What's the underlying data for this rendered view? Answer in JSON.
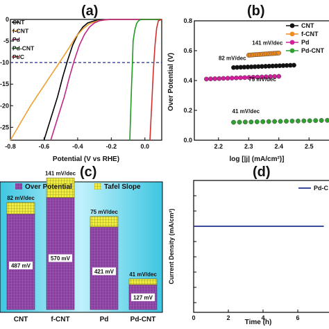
{
  "chart_data": [
    {
      "panel": "(a)",
      "type": "line",
      "xlabel": "Potential (V vs RHE)",
      "ylabel": "",
      "xlim": [
        -0.8,
        0.1
      ],
      "ylim": [
        -28,
        0
      ],
      "x_ticks": [
        "-0.8",
        "-0.6",
        "-0.4",
        "-0.2",
        "0.0"
      ],
      "y_ticks": [
        "0",
        "-5",
        "-10",
        "-15",
        "-20",
        "-25"
      ],
      "reference_line": {
        "y": -10,
        "style": "dashed",
        "color": "#1f2f8a"
      },
      "legend": [
        "CNT",
        "f-CNT",
        "Pd",
        "Pd-CNT",
        "Pt/C"
      ],
      "series": [
        {
          "name": "CNT",
          "color": "#000000",
          "x": [
            -0.6,
            -0.56,
            -0.52,
            -0.49,
            -0.46,
            -0.43,
            -0.4,
            -0.37,
            -0.34,
            -0.3,
            -0.25,
            -0.2,
            0.0,
            0.1
          ],
          "y": [
            -28,
            -23,
            -18,
            -13.5,
            -9.5,
            -6,
            -3.5,
            -1.8,
            -0.8,
            -0.3,
            -0.1,
            0,
            0,
            0
          ]
        },
        {
          "name": "f-CNT",
          "color": "#f0a030",
          "x": [
            -0.8,
            -0.74,
            -0.68,
            -0.62,
            -0.56,
            -0.5,
            -0.45,
            -0.41,
            -0.37,
            -0.33,
            -0.28,
            -0.2,
            0.0,
            0.1
          ],
          "y": [
            -28,
            -24,
            -20,
            -16.5,
            -13,
            -9.5,
            -6.5,
            -4,
            -2.2,
            -1,
            -0.3,
            0,
            0,
            0
          ]
        },
        {
          "name": "Pd",
          "color": "#c2248a",
          "x": [
            -0.56,
            -0.52,
            -0.48,
            -0.45,
            -0.42,
            -0.39,
            -0.36,
            -0.33,
            -0.3,
            -0.27,
            -0.24,
            -0.2,
            0.0,
            0.1
          ],
          "y": [
            -28,
            -23,
            -18,
            -13.5,
            -9.5,
            -6,
            -3.5,
            -1.8,
            -0.8,
            -0.3,
            -0.1,
            0,
            0,
            0
          ]
        },
        {
          "name": "Pd-CNT",
          "color": "#1e9a1e",
          "x": [
            -0.09,
            -0.085,
            -0.08,
            -0.075,
            -0.07,
            -0.06,
            -0.05,
            -0.04,
            -0.03,
            -0.02,
            -0.01,
            0.0,
            0.1
          ],
          "y": [
            -28,
            -22,
            -16,
            -11,
            -5,
            -2.5,
            -1,
            -0.4,
            -0.1,
            0,
            0,
            0,
            0
          ]
        },
        {
          "name": "Pt/C",
          "color": "#d03030",
          "x": [
            0.03,
            0.04,
            0.05,
            0.06,
            0.07,
            0.08,
            0.1
          ],
          "y": [
            -28,
            -20,
            -12,
            -6,
            -2,
            -0.3,
            0
          ]
        }
      ]
    },
    {
      "panel": "(b)",
      "type": "scatter",
      "xlabel": "log [|j| (mA/cm²)]",
      "ylabel": "Over Potential (V)",
      "xlim": [
        2.12,
        2.58
      ],
      "ylim": [
        0.0,
        0.8
      ],
      "x_ticks": [
        "2.2",
        "2.3",
        "2.4",
        "2.5"
      ],
      "y_ticks": [
        "0.0",
        "0.2",
        "0.4",
        "0.6",
        "0.8"
      ],
      "legend": [
        "CNT",
        "f-CNT",
        "Pd",
        "Pd-CNT"
      ],
      "series": [
        {
          "name": "CNT",
          "color": "#111111",
          "label": "82 mV/dec",
          "x": [
            2.25,
            2.45
          ],
          "y": [
            0.487,
            0.503
          ]
        },
        {
          "name": "f-CNT",
          "color": "#f08c20",
          "label": "141 mV/dec",
          "x": [
            2.3,
            2.4
          ],
          "y": [
            0.57,
            0.584
          ]
        },
        {
          "name": "Pd",
          "color": "#d0209a",
          "label": "75 mV/dec",
          "x": [
            2.16,
            2.4
          ],
          "y": [
            0.41,
            0.428
          ]
        },
        {
          "name": "Pd-CNT",
          "color": "#30a030",
          "label": "41 mV/dec",
          "x": [
            2.25,
            2.58
          ],
          "y": [
            0.12,
            0.134
          ]
        }
      ]
    },
    {
      "panel": "(c)",
      "type": "bar",
      "legend": [
        "Over Potential",
        "Tafel Slope"
      ],
      "categories": [
        "CNT",
        "f-CNT",
        "Pd",
        "Pd-CNT"
      ],
      "series": [
        {
          "name": "Over Potential",
          "unit": "mV",
          "values": [
            487,
            570,
            421,
            127
          ],
          "labels": [
            "487 mV",
            "570 mV",
            "421 mV",
            "127 mV"
          ]
        },
        {
          "name": "Tafel Slope",
          "unit": "mV/dec",
          "values": [
            82,
            141,
            75,
            41
          ],
          "labels": [
            "82 mV/dec",
            "141 mV/dec",
            "75 mV/dec",
            "41 mV/dec"
          ]
        }
      ],
      "colors": {
        "over_potential": "#8a3fa0",
        "tafel": "#f2ef3a",
        "background": "#4ad0e8"
      }
    },
    {
      "panel": "(d)",
      "type": "line",
      "xlabel": "Time (h)",
      "ylabel": "Current Density (mA/cm²)",
      "x_ticks": [
        "0",
        "2",
        "4",
        "6"
      ],
      "legend": [
        "Pd-C"
      ],
      "series": [
        {
          "name": "Pd-C",
          "color": "#1f2f8a",
          "x": [
            0,
            7.5
          ],
          "y": [
            0,
            0
          ]
        }
      ]
    }
  ],
  "panel_labels": [
    "(a)",
    "(b)",
    "(c)",
    "(d)"
  ]
}
